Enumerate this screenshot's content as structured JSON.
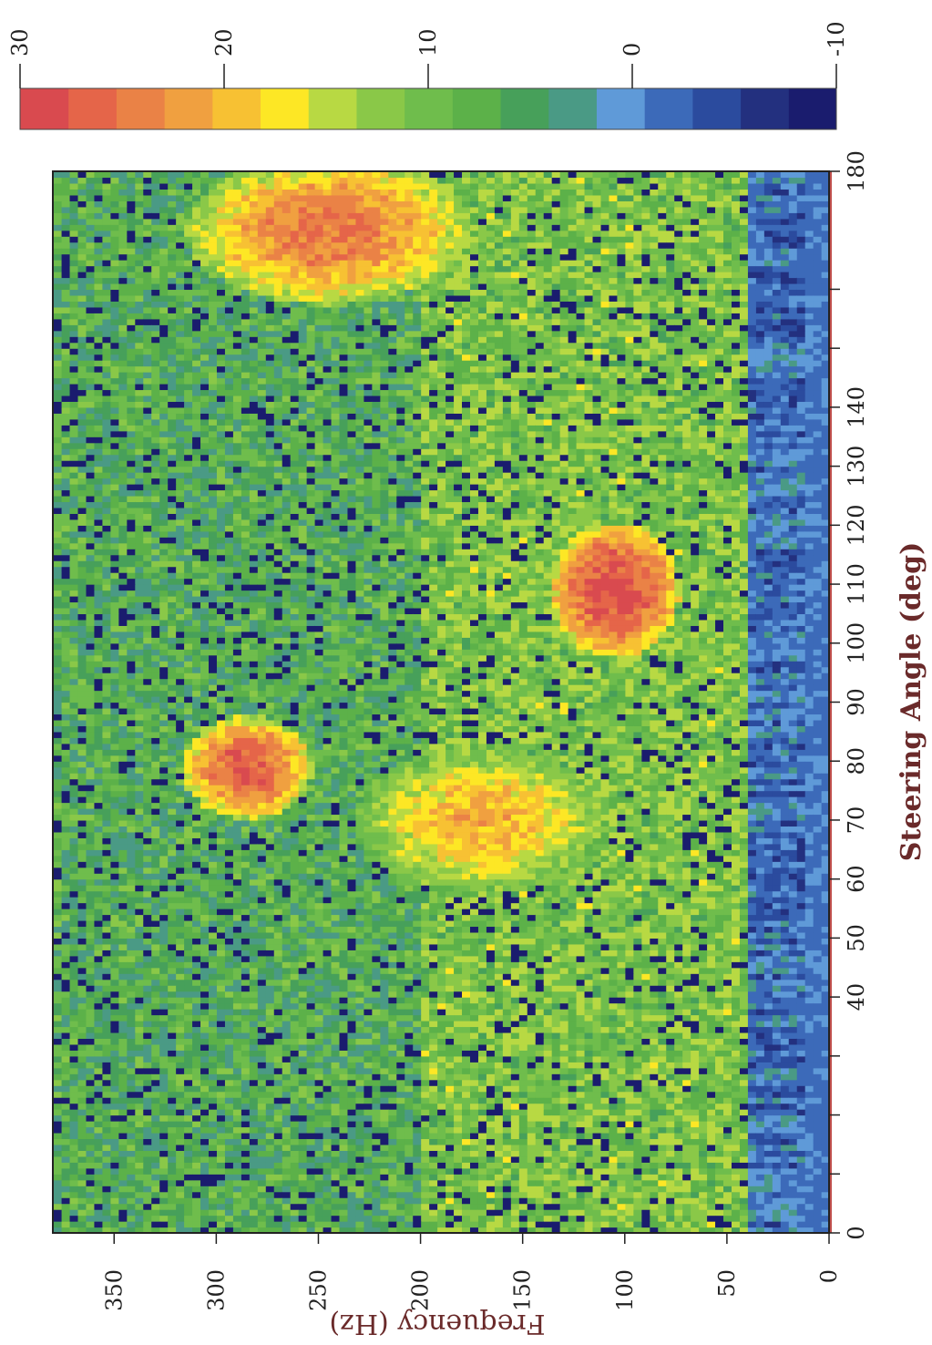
{
  "chart_data": {
    "type": "heatmap",
    "title": "",
    "xlabel": "Steering Angle (deg)",
    "ylabel": "Frequency (Hz)",
    "xlim": [
      0,
      180
    ],
    "ylim": [
      0,
      380
    ],
    "x_ticks": [
      "0",
      "",
      "",
      "",
      "40",
      "50",
      "60",
      "70",
      "80",
      "90",
      "100",
      "110",
      "120",
      "130",
      "140",
      "",
      "",
      "180"
    ],
    "y_ticks": [
      "0",
      "50",
      "100",
      "150",
      "200",
      "250",
      "300",
      "350"
    ],
    "colorbar": {
      "range": [
        -10,
        30
      ],
      "ticks": [
        "-10",
        "0",
        "10",
        "20",
        "30"
      ],
      "colors": [
        "#1a1c6e",
        "#23307f",
        "#2b4b9e",
        "#3c6ab9",
        "#5f9ad8",
        "#4a9a85",
        "#47a05a",
        "#5cb149",
        "#6fbd4c",
        "#8ac848",
        "#b8d943",
        "#fde725",
        "#f7c133",
        "#f0a040",
        "#ea8246",
        "#e56549",
        "#d94a4f"
      ]
    },
    "features": [
      {
        "angle_range": [
          72,
          86
        ],
        "freq_range": [
          260,
          310
        ],
        "peak": 24
      },
      {
        "angle_range": [
          100,
          118
        ],
        "freq_range": [
          80,
          130
        ],
        "peak": 26
      },
      {
        "angle_range": [
          160,
          180
        ],
        "freq_range": [
          190,
          300
        ],
        "peak": 22
      },
      {
        "angle_range": [
          60,
          80
        ],
        "freq_range": [
          120,
          220
        ],
        "peak": 18
      }
    ]
  }
}
